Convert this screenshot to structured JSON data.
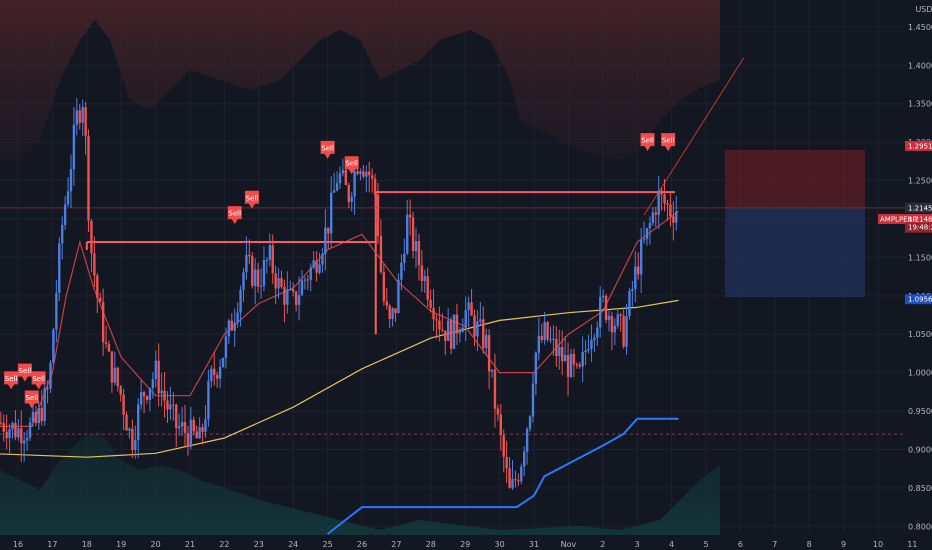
{
  "colors": {
    "background": "#131722",
    "up": "#4d7fe0",
    "down": "#ef5350",
    "ema_short": "#f44a4a",
    "ema_long": "#e6c35c",
    "trail": "#2979ff",
    "sell": "#f44a4a",
    "grid": "#1e2230"
  },
  "axis": {
    "currency": "USD",
    "y_ticks": [
      "1.4500",
      "1.4000",
      "1.3500",
      "1.3000",
      "1.2500",
      "1.2000",
      "1.1500",
      "1.1000",
      "1.0500",
      "1.0000",
      "0.9500",
      "0.9000",
      "0.8500",
      "0.8000"
    ],
    "x_ticks": [
      "16",
      "17",
      "18",
      "19",
      "20",
      "21",
      "22",
      "23",
      "24",
      "25",
      "26",
      "27",
      "28",
      "29",
      "30",
      "31",
      "Nov",
      "2",
      "3",
      "4",
      "5",
      "6",
      "7",
      "8",
      "9",
      "10",
      "11"
    ]
  },
  "price_labels": {
    "stop": "1.2951",
    "last": "1.2145",
    "symbol": "AMPLPERP",
    "symbol_price": "1.2148",
    "countdown": "19:48:27",
    "target": "1.0956"
  },
  "sell_label": "Sell",
  "chart_data": {
    "type": "candlestick",
    "title": "",
    "y_unit": "USD",
    "ylim": [
      0.79,
      1.485
    ],
    "levels": {
      "resistance_left": 1.17,
      "resistance_right": 1.235,
      "short_entry": 1.2145,
      "short_stop": 1.2951,
      "short_target": 1.0956,
      "dashed_level": 0.92
    },
    "sell_signals": [
      {
        "day": 15.8,
        "price": 0.99
      },
      {
        "day": 16.2,
        "price": 1.0
      },
      {
        "day": 16.4,
        "price": 0.965
      },
      {
        "day": 16.6,
        "price": 0.99
      },
      {
        "day": 22.3,
        "price": 1.205
      },
      {
        "day": 22.8,
        "price": 1.225
      },
      {
        "day": 25.0,
        "price": 1.29
      },
      {
        "day": 25.7,
        "price": 1.27
      },
      {
        "day": 34.3,
        "price": 1.3
      },
      {
        "day": 34.9,
        "price": 1.3
      }
    ],
    "trail_line": [
      [
        25.0,
        0.79
      ],
      [
        26.0,
        0.825
      ],
      [
        30.5,
        0.825
      ],
      [
        31.0,
        0.84
      ],
      [
        31.3,
        0.865
      ],
      [
        33.0,
        0.905
      ],
      [
        33.6,
        0.92
      ],
      [
        34.0,
        0.94
      ],
      [
        35.2,
        0.94
      ]
    ],
    "ema_long": [
      [
        15.0,
        0.895
      ],
      [
        18.0,
        0.89
      ],
      [
        20.0,
        0.895
      ],
      [
        22.0,
        0.915
      ],
      [
        24.0,
        0.955
      ],
      [
        26.0,
        1.005
      ],
      [
        28.0,
        1.045
      ],
      [
        30.0,
        1.068
      ],
      [
        32.0,
        1.078
      ],
      [
        34.0,
        1.085
      ],
      [
        35.2,
        1.094
      ]
    ],
    "ema_short": [
      [
        15.0,
        0.93
      ],
      [
        16.4,
        0.93
      ],
      [
        17.0,
        1.0
      ],
      [
        17.4,
        1.1
      ],
      [
        17.8,
        1.17
      ],
      [
        18.2,
        1.11
      ],
      [
        19.0,
        1.02
      ],
      [
        20.0,
        0.97
      ],
      [
        21.0,
        0.97
      ],
      [
        22.0,
        1.05
      ],
      [
        23.0,
        1.09
      ],
      [
        24.0,
        1.11
      ],
      [
        25.0,
        1.16
      ],
      [
        26.0,
        1.18
      ],
      [
        27.0,
        1.12
      ],
      [
        28.0,
        1.08
      ],
      [
        29.0,
        1.06
      ],
      [
        30.0,
        1.0
      ],
      [
        31.0,
        1.0
      ],
      [
        32.0,
        1.05
      ],
      [
        33.0,
        1.08
      ],
      [
        34.0,
        1.17
      ],
      [
        35.2,
        1.21
      ]
    ]
  }
}
